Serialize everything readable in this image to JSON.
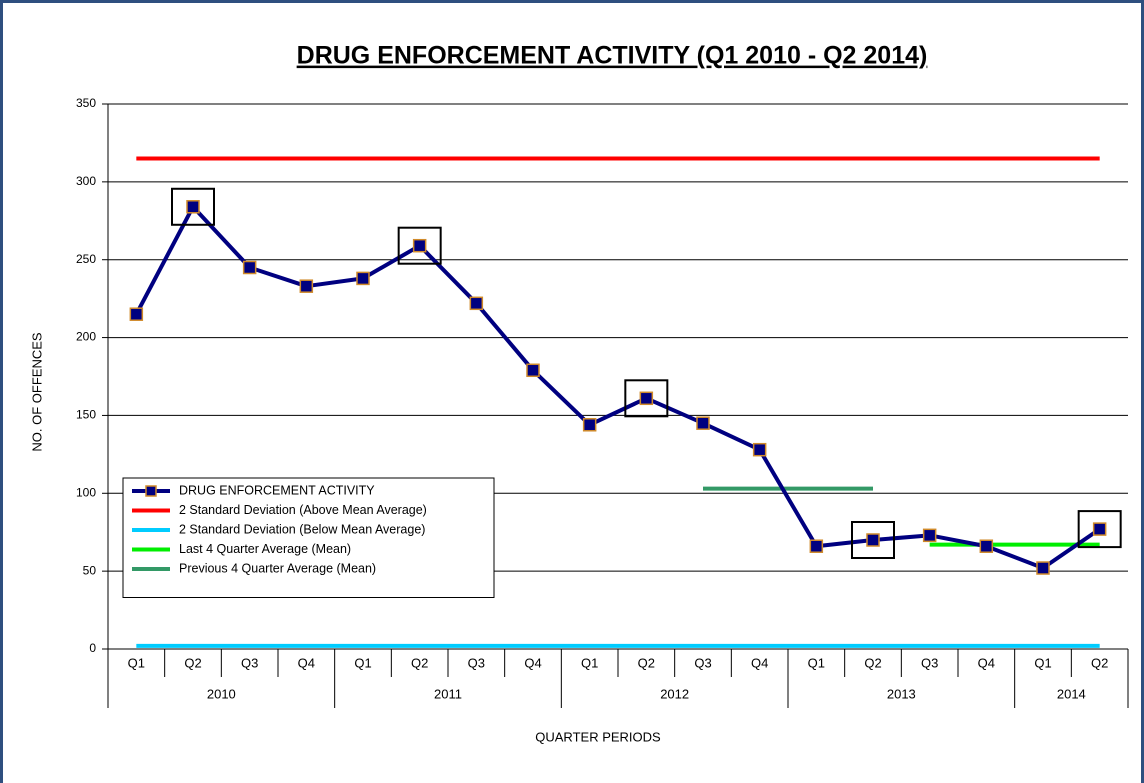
{
  "chart_data": {
    "type": "line",
    "title": "DRUG ENFORCEMENT ACTIVITY (Q1 2010 - Q2 2014)",
    "x_label": "QUARTER PERIODS",
    "y_label": "NO. OF OFFENCES",
    "categories": [
      "Q1",
      "Q2",
      "Q3",
      "Q4",
      "Q1",
      "Q2",
      "Q3",
      "Q4",
      "Q1",
      "Q2",
      "Q3",
      "Q4",
      "Q1",
      "Q2",
      "Q3",
      "Q4",
      "Q1",
      "Q2"
    ],
    "groups": [
      {
        "name": "2010",
        "count": 4
      },
      {
        "name": "2011",
        "count": 4
      },
      {
        "name": "2012",
        "count": 4
      },
      {
        "name": "2013",
        "count": 4
      },
      {
        "name": "2014",
        "count": 2
      }
    ],
    "ylim": [
      0,
      350
    ],
    "yticks": [
      0,
      50,
      100,
      150,
      200,
      250,
      300,
      350
    ],
    "grid": true,
    "legend": "lower left",
    "series": [
      {
        "name": "DRUG ENFORCEMENT ACTIVITY",
        "color": "#000080",
        "marker_edge": "#d08a2a",
        "values": [
          215,
          284,
          245,
          233,
          238,
          259,
          222,
          179,
          144,
          161,
          145,
          128,
          66,
          70,
          73,
          66,
          52,
          77
        ],
        "boxed": [
          false,
          true,
          false,
          false,
          false,
          true,
          false,
          false,
          false,
          true,
          false,
          false,
          false,
          true,
          false,
          false,
          false,
          true
        ]
      },
      {
        "name": "2 Standard Deviation (Above Mean Average)",
        "color": "#ff0000",
        "values": [
          315,
          315,
          315,
          315,
          315,
          315,
          315,
          315,
          315,
          315,
          315,
          315,
          315,
          315,
          315,
          315,
          315,
          315
        ]
      },
      {
        "name": "2 Standard Deviation (Below Mean Average)",
        "color": "#00ccff",
        "values": [
          2,
          2,
          2,
          2,
          2,
          2,
          2,
          2,
          2,
          2,
          2,
          2,
          2,
          2,
          2,
          2,
          2,
          2
        ]
      },
      {
        "name": "Last 4 Quarter Average (Mean)",
        "color": "#00ee00",
        "values": [
          null,
          null,
          null,
          null,
          null,
          null,
          null,
          null,
          null,
          null,
          null,
          null,
          null,
          null,
          67,
          67,
          67,
          67
        ]
      },
      {
        "name": "Previous 4 Quarter Average (Mean)",
        "color": "#339966",
        "values": [
          null,
          null,
          null,
          null,
          null,
          null,
          null,
          null,
          null,
          null,
          103,
          103,
          103,
          103,
          null,
          null,
          null,
          null
        ]
      }
    ]
  }
}
